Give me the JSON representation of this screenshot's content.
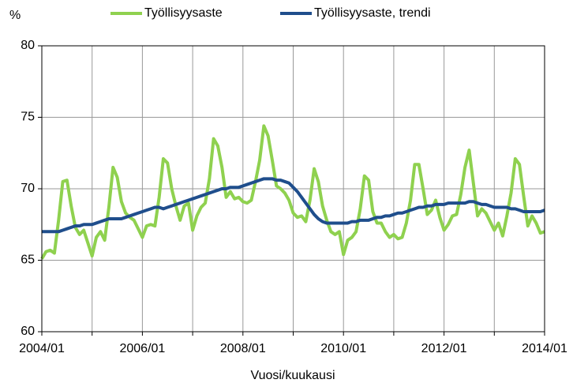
{
  "chart_data": {
    "type": "line",
    "y_unit_label": "%",
    "x_label": "Vuosi/kuukausi",
    "categories": [
      "2004/01",
      null,
      null,
      null,
      null,
      null,
      null,
      null,
      null,
      null,
      null,
      null,
      null,
      null,
      null,
      null,
      null,
      null,
      null,
      null,
      null,
      null,
      null,
      null,
      "2006/01",
      null,
      null,
      null,
      null,
      null,
      null,
      null,
      null,
      null,
      null,
      null,
      null,
      null,
      null,
      null,
      null,
      null,
      null,
      null,
      null,
      null,
      null,
      null,
      "2008/01",
      null,
      null,
      null,
      null,
      null,
      null,
      null,
      null,
      null,
      null,
      null,
      null,
      null,
      null,
      null,
      null,
      null,
      null,
      null,
      null,
      null,
      null,
      null,
      "2010/01",
      null,
      null,
      null,
      null,
      null,
      null,
      null,
      null,
      null,
      null,
      null,
      null,
      null,
      null,
      null,
      null,
      null,
      null,
      null,
      null,
      null,
      null,
      null,
      "2012/01",
      null,
      null,
      null,
      null,
      null,
      null,
      null,
      null,
      null,
      null,
      null,
      null,
      null,
      null,
      null,
      null,
      null,
      null,
      null,
      null,
      null,
      null,
      null,
      "2014/01"
    ],
    "series": [
      {
        "name": "Työllisyysaste",
        "color": "#8fd14f",
        "values": [
          65.1,
          65.6,
          65.7,
          65.5,
          67.8,
          70.5,
          70.6,
          68.8,
          67.3,
          66.8,
          67.1,
          66.2,
          65.3,
          66.6,
          67.0,
          66.4,
          68.7,
          71.5,
          70.8,
          69.1,
          68.3,
          68.0,
          67.8,
          67.2,
          66.6,
          67.4,
          67.5,
          67.4,
          69.4,
          72.1,
          71.8,
          70.0,
          68.8,
          67.8,
          68.8,
          69.0,
          67.1,
          68.1,
          68.7,
          69.0,
          70.7,
          73.5,
          73.0,
          71.5,
          69.4,
          69.8,
          69.3,
          69.4,
          69.1,
          69.0,
          69.2,
          70.5,
          72.0,
          74.4,
          73.7,
          72.0,
          70.2,
          70.0,
          69.7,
          69.2,
          68.3,
          68.0,
          68.1,
          67.7,
          69.2,
          71.4,
          70.5,
          68.8,
          67.8,
          67.0,
          66.8,
          67.0,
          65.4,
          66.4,
          66.6,
          67.0,
          68.6,
          70.9,
          70.6,
          68.4,
          67.6,
          67.6,
          67.0,
          66.6,
          66.8,
          66.5,
          66.6,
          67.6,
          69.2,
          71.7,
          71.7,
          70.0,
          68.2,
          68.5,
          69.2,
          68.0,
          67.1,
          67.5,
          68.1,
          68.2,
          69.6,
          71.5,
          72.7,
          70.4,
          68.1,
          68.6,
          68.3,
          67.7,
          67.1,
          67.6,
          66.7,
          68.1,
          69.7,
          72.1,
          71.7,
          69.5,
          67.4,
          68.1,
          67.6,
          66.9,
          67.0
        ]
      },
      {
        "name": "Työllisyysaste, trendi",
        "color": "#1f4e8c",
        "values": [
          67.0,
          67.0,
          67.0,
          67.0,
          67.0,
          67.1,
          67.2,
          67.3,
          67.4,
          67.4,
          67.5,
          67.5,
          67.5,
          67.6,
          67.7,
          67.8,
          67.9,
          67.9,
          67.9,
          67.9,
          68.0,
          68.1,
          68.2,
          68.3,
          68.4,
          68.5,
          68.6,
          68.7,
          68.7,
          68.6,
          68.7,
          68.8,
          68.9,
          69.0,
          69.1,
          69.2,
          69.3,
          69.4,
          69.5,
          69.6,
          69.7,
          69.8,
          69.9,
          70.0,
          70.0,
          70.1,
          70.1,
          70.1,
          70.2,
          70.3,
          70.4,
          70.5,
          70.6,
          70.7,
          70.7,
          70.7,
          70.6,
          70.6,
          70.5,
          70.4,
          70.1,
          69.8,
          69.4,
          69.0,
          68.6,
          68.2,
          67.9,
          67.7,
          67.6,
          67.6,
          67.6,
          67.6,
          67.6,
          67.6,
          67.7,
          67.7,
          67.8,
          67.8,
          67.8,
          67.9,
          68.0,
          68.0,
          68.1,
          68.1,
          68.2,
          68.3,
          68.3,
          68.4,
          68.5,
          68.6,
          68.7,
          68.7,
          68.8,
          68.8,
          68.9,
          68.9,
          68.9,
          69.0,
          69.0,
          69.0,
          69.0,
          69.0,
          69.1,
          69.1,
          69.0,
          68.9,
          68.9,
          68.8,
          68.7,
          68.7,
          68.7,
          68.7,
          68.6,
          68.6,
          68.5,
          68.4,
          68.4,
          68.4,
          68.4,
          68.4,
          68.5
        ]
      }
    ],
    "ylim": [
      60,
      80
    ],
    "yticks": [
      60,
      65,
      70,
      75,
      80
    ],
    "grid": true,
    "legend": "top"
  }
}
